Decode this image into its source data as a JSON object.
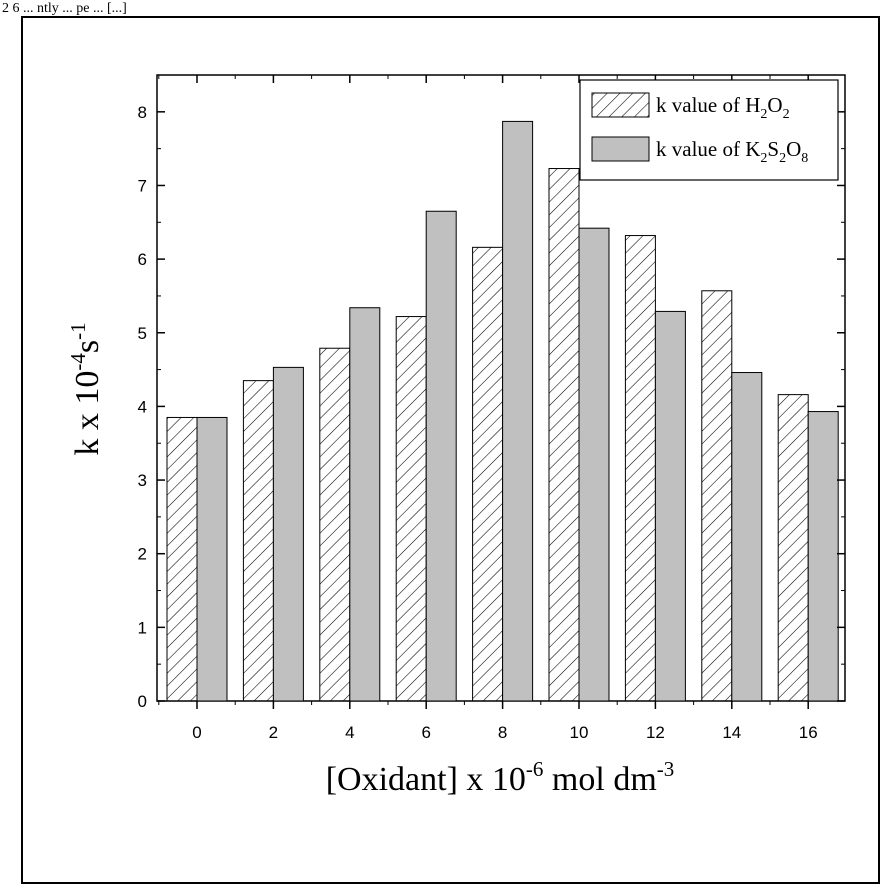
{
  "top_caption": "2 6 ... ntly ... pe ... [...]",
  "chart_data": {
    "type": "bar",
    "categories": [
      "0",
      "2",
      "4",
      "6",
      "8",
      "10",
      "12",
      "14",
      "16"
    ],
    "series": [
      {
        "name": "k value of H2O2",
        "legend_main": "k value of H",
        "legend_parts": [
          [
            "2",
            "sub"
          ],
          [
            "O",
            "base"
          ],
          [
            "2",
            "sub"
          ]
        ],
        "pattern": "hatched",
        "values": [
          3.85,
          4.35,
          4.79,
          5.22,
          6.16,
          7.23,
          6.32,
          5.57,
          4.16
        ]
      },
      {
        "name": "k value of K2S2O8",
        "legend_main": "k value of K",
        "legend_parts": [
          [
            "2",
            "sub"
          ],
          [
            "S",
            "base"
          ],
          [
            "2",
            "sub"
          ],
          [
            "O",
            "base"
          ],
          [
            "8",
            "sub"
          ]
        ],
        "pattern": "solid",
        "fill": "#c0c0c0",
        "values": [
          3.85,
          4.53,
          5.34,
          6.65,
          7.87,
          6.42,
          5.29,
          4.46,
          3.93
        ]
      }
    ],
    "yticks": [
      "0",
      "1",
      "2",
      "3",
      "4",
      "5",
      "6",
      "7",
      "8"
    ],
    "ylim": [
      0,
      8.5
    ],
    "xlabel": {
      "main": "[Oxidant] x 10",
      "sup1": "-6",
      "rest": " mol dm",
      "sup2": "-3"
    },
    "ylabel": {
      "main": "k x 10",
      "sup1": "-4",
      "mid": "s",
      "sup2": "-1"
    },
    "legend_position": "top-right",
    "grid": false
  }
}
